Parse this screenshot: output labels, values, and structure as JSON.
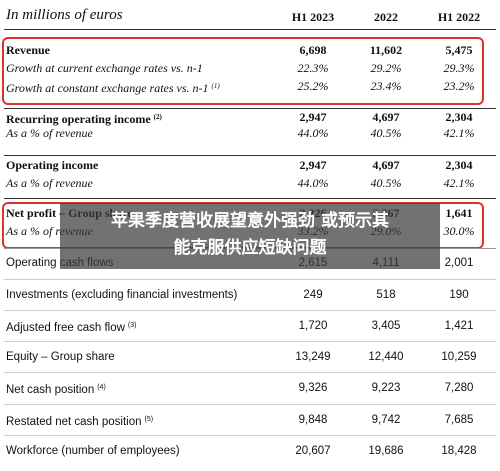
{
  "header": {
    "title": "In millions of euros",
    "columns": [
      "H1 2023",
      "2022",
      "H1 2022"
    ]
  },
  "table": {
    "rows": [
      {
        "label": "Revenue",
        "values": [
          "6,698",
          "11,602",
          "5,475"
        ]
      },
      {
        "label": "Growth at current exchange rates vs. n-1",
        "values": [
          "22.3%",
          "29.2%",
          "29.3%"
        ]
      },
      {
        "label": "Growth at constant exchange rates vs. n-1",
        "note": "(1)",
        "values": [
          "25.2%",
          "23.4%",
          "23.2%"
        ]
      },
      {
        "label": "Recurring operating income",
        "note": "(2)",
        "values": [
          "2,947",
          "4,697",
          "2,304"
        ]
      },
      {
        "label": "As a % of revenue",
        "values": [
          "44.0%",
          "40.5%",
          "42.1%"
        ]
      },
      {
        "label": "Operating income",
        "values": [
          "2,947",
          "4,697",
          "2,304"
        ]
      },
      {
        "label": "As a % of revenue",
        "values": [
          "44.0%",
          "40.5%",
          "42.1%"
        ]
      },
      {
        "label": "Net profit – Group share",
        "values": [
          "2,226",
          "3,367",
          "1,641"
        ]
      },
      {
        "label": "As a % of revenue",
        "values": [
          "33.2%",
          "29.0%",
          "30.0%"
        ]
      },
      {
        "label": "Operating cash flows",
        "values": [
          "2,615",
          "4,111",
          "2,001"
        ]
      },
      {
        "label": "Investments (excluding financial investments)",
        "values": [
          "249",
          "518",
          "190"
        ]
      },
      {
        "label": "Adjusted free cash flow",
        "note": "(3)",
        "values": [
          "1,720",
          "3,405",
          "1,421"
        ]
      },
      {
        "label": "Equity – Group share",
        "values": [
          "13,249",
          "12,440",
          "10,259"
        ]
      },
      {
        "label": "Net cash position",
        "note": "(4)",
        "values": [
          "9,326",
          "9,223",
          "7,280"
        ]
      },
      {
        "label": "Restated net cash position",
        "note": "(5)",
        "values": [
          "9,848",
          "9,742",
          "7,685"
        ]
      },
      {
        "label": "Workforce (number of employees)",
        "values": [
          "20,607",
          "19,686",
          "18,428"
        ]
      }
    ]
  },
  "overlay": {
    "lines": [
      "苹果季度营收展望意外强劲 或预示其",
      "能克服供应短缺问题"
    ]
  }
}
